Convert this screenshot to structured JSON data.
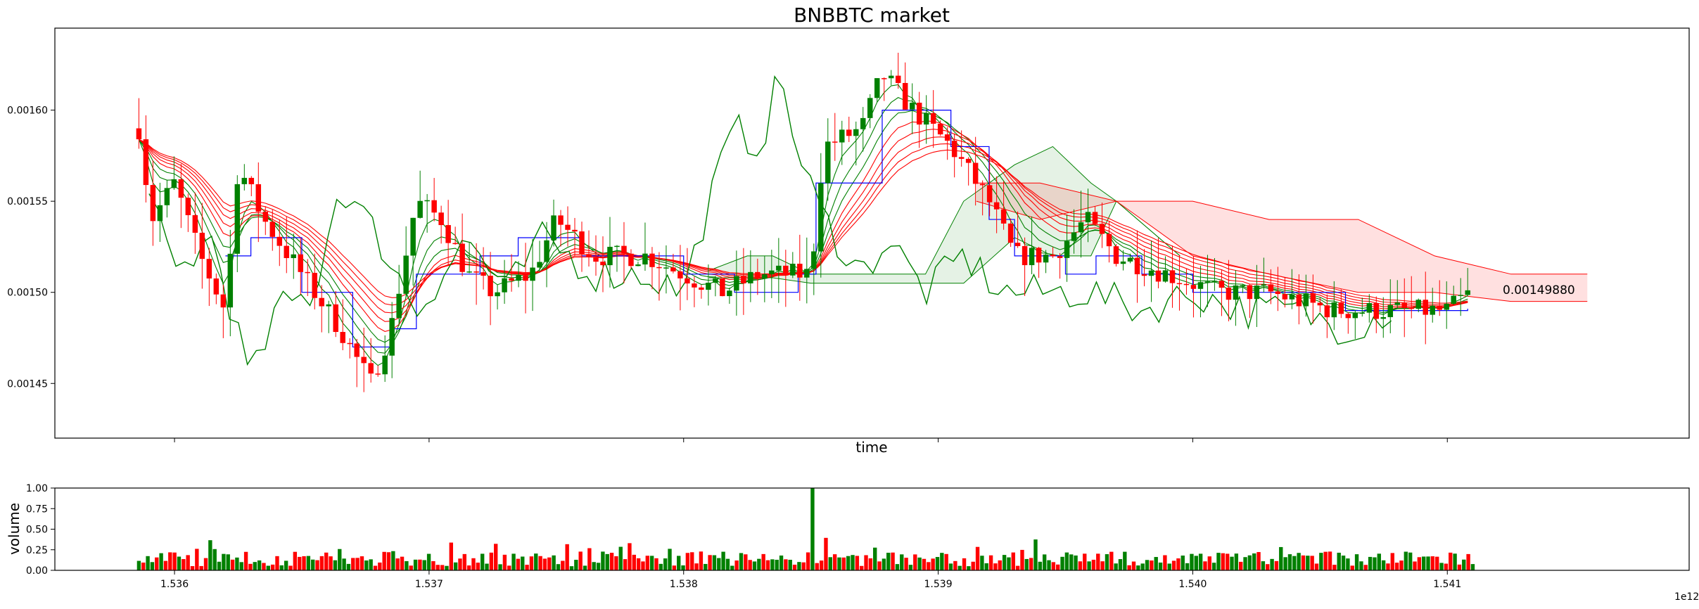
{
  "chart_data": [
    {
      "type": "candlestick",
      "title": "BNBBTC market",
      "xlabel": "time",
      "ylabel": "",
      "xlim": [
        1535530000000,
        1541950000000
      ],
      "ylim": [
        0.00142,
        0.001645
      ],
      "yticks": [
        0.00145,
        0.0015,
        0.00155,
        0.0016
      ],
      "ytick_labels": [
        "0.00145",
        "0.00150",
        "0.00155",
        "0.00160"
      ],
      "last_price_label": "0.00149880",
      "last_price": 0.0014988,
      "colors": {
        "up": "#008000",
        "down": "#ff0000",
        "kijun": "#0000ff",
        "ema": "#ff0000",
        "ema_fast": "#008000",
        "cloud_bull": "#008000",
        "cloud_bear": "#ff0000"
      },
      "price_path": [
        [
          1535860000000,
          0.00159
        ],
        [
          1535910000000,
          0.00154
        ],
        [
          1536000000000,
          0.00156
        ],
        [
          1536100000000,
          0.00152
        ],
        [
          1536200000000,
          0.00149
        ],
        [
          1536250000000,
          0.00157
        ],
        [
          1536350000000,
          0.00154
        ],
        [
          1536500000000,
          0.00151
        ],
        [
          1536650000000,
          0.00148
        ],
        [
          1536770000000,
          0.00145
        ],
        [
          1536850000000,
          0.00148
        ],
        [
          1536950000000,
          0.00155
        ],
        [
          1537050000000,
          0.00154
        ],
        [
          1537150000000,
          0.00151
        ],
        [
          1537250000000,
          0.0015
        ],
        [
          1537400000000,
          0.00151
        ],
        [
          1537500000000,
          0.00154
        ],
        [
          1537650000000,
          0.00152
        ],
        [
          1537850000000,
          0.00152
        ],
        [
          1538000000000,
          0.00151
        ],
        [
          1538150000000,
          0.0015
        ],
        [
          1538300000000,
          0.00151
        ],
        [
          1538500000000,
          0.00151
        ],
        [
          1538550000000,
          0.00158
        ],
        [
          1538700000000,
          0.00159
        ],
        [
          1538780000000,
          0.00162
        ],
        [
          1538900000000,
          0.0016
        ],
        [
          1539050000000,
          0.00158
        ],
        [
          1539200000000,
          0.00155
        ],
        [
          1539300000000,
          0.00152
        ],
        [
          1539450000000,
          0.00152
        ],
        [
          1539580000000,
          0.00154
        ],
        [
          1539700000000,
          0.00152
        ],
        [
          1539900000000,
          0.00151
        ],
        [
          1540100000000,
          0.0015
        ],
        [
          1540300000000,
          0.0015
        ],
        [
          1540550000000,
          0.00149
        ],
        [
          1540800000000,
          0.00149
        ],
        [
          1541000000000,
          0.00149
        ],
        [
          1541080000000,
          0.0014988
        ]
      ],
      "chikou_path": [
        [
          1535900000000,
          0.00155
        ],
        [
          1536000000000,
          0.00151
        ],
        [
          1536150000000,
          0.00153
        ],
        [
          1536300000000,
          0.00145
        ],
        [
          1536400000000,
          0.00149
        ],
        [
          1536550000000,
          0.0015
        ],
        [
          1536650000000,
          0.00156
        ],
        [
          1536800000000,
          0.00153
        ],
        [
          1536950000000,
          0.00149
        ],
        [
          1537150000000,
          0.00153
        ],
        [
          1537300000000,
          0.0015
        ],
        [
          1537450000000,
          0.00153
        ],
        [
          1537650000000,
          0.00151
        ],
        [
          1537850000000,
          0.00151
        ],
        [
          1538000000000,
          0.0015
        ],
        [
          1538100000000,
          0.00155
        ],
        [
          1538200000000,
          0.00159
        ],
        [
          1538300000000,
          0.00158
        ],
        [
          1538380000000,
          0.00162
        ],
        [
          1538460000000,
          0.00157
        ],
        [
          1538550000000,
          0.00154
        ],
        [
          1538700000000,
          0.00151
        ],
        [
          1538800000000,
          0.00153
        ],
        [
          1538950000000,
          0.0015
        ],
        [
          1539100000000,
          0.00152
        ],
        [
          1539250000000,
          0.0015
        ],
        [
          1539450000000,
          0.0015
        ],
        [
          1539600000000,
          0.0015
        ],
        [
          1539800000000,
          0.00149
        ],
        [
          1540000000000,
          0.0015
        ],
        [
          1540200000000,
          0.00149
        ],
        [
          1540400000000,
          0.00149
        ],
        [
          1540600000000,
          0.00148
        ],
        [
          1540780000000,
          0.00149
        ]
      ],
      "kijun_path": [
        [
          1536200000000,
          0.00152
        ],
        [
          1536300000000,
          0.00153
        ],
        [
          1536450000000,
          0.00153
        ],
        [
          1536500000000,
          0.0015
        ],
        [
          1536700000000,
          0.00147
        ],
        [
          1536850000000,
          0.00148
        ],
        [
          1536950000000,
          0.00151
        ],
        [
          1537200000000,
          0.00152
        ],
        [
          1537350000000,
          0.00153
        ],
        [
          1537600000000,
          0.00152
        ],
        [
          1537850000000,
          0.00152
        ],
        [
          1538000000000,
          0.00151
        ],
        [
          1538200000000,
          0.0015
        ],
        [
          1538450000000,
          0.00151
        ],
        [
          1538520000000,
          0.00156
        ],
        [
          1538650000000,
          0.00156
        ],
        [
          1538780000000,
          0.0016
        ],
        [
          1539050000000,
          0.00158
        ],
        [
          1539200000000,
          0.00154
        ],
        [
          1539300000000,
          0.00152
        ],
        [
          1539500000000,
          0.00151
        ],
        [
          1539620000000,
          0.00152
        ],
        [
          1539800000000,
          0.00151
        ],
        [
          1540000000000,
          0.0015
        ],
        [
          1540300000000,
          0.0015
        ],
        [
          1540600000000,
          0.00149
        ],
        [
          1540900000000,
          0.00149
        ],
        [
          1541080000000,
          0.001491
        ]
      ],
      "cloud": [
        {
          "name": "bull",
          "x": [
            1538100000000,
            1538250000000,
            1538350000000,
            1538500000000,
            1538950000000,
            1539100000000,
            1539300000000,
            1539450000000,
            1539600000000,
            1539700000000,
            1539950000000
          ],
          "upper": [
            0.001512,
            0.00152,
            0.00152,
            0.00151,
            0.00151,
            0.00155,
            0.00157,
            0.00158,
            0.00156,
            0.00155,
            0.00152
          ],
          "lower": [
            0.001508,
            0.001508,
            0.001508,
            0.001505,
            0.001505,
            0.001505,
            0.00153,
            0.00152,
            0.00152,
            0.00155,
            0.00152
          ]
        },
        {
          "name": "bear",
          "x": [
            1539150000000,
            1539400000000,
            1539700000000,
            1540000000000,
            1540300000000,
            1540650000000,
            1540950000000,
            1541250000000,
            1541550000000
          ],
          "upper": [
            0.00156,
            0.00156,
            0.00155,
            0.00155,
            0.00154,
            0.00154,
            0.00152,
            0.00151,
            0.00151
          ],
          "lower": [
            0.00155,
            0.00154,
            0.00155,
            0.00152,
            0.00151,
            0.0015,
            0.0015,
            0.001495,
            0.001495
          ]
        }
      ],
      "ema_count": 8
    },
    {
      "type": "bar",
      "ylabel": "volume",
      "xlabel": "",
      "ylim": [
        0,
        1
      ],
      "yticks": [
        0,
        0.25,
        0.5,
        0.75,
        1
      ],
      "ytick_labels": [
        "0.00",
        "0.25",
        "0.50",
        "0.75",
        "1.00"
      ],
      "xlim": [
        1535530000000,
        1541950000000
      ],
      "xticks": [
        1536000000000,
        1537000000000,
        1538000000000,
        1539000000000,
        1540000000000,
        1541000000000
      ],
      "xtick_labels": [
        "1.536",
        "1.537",
        "1.538",
        "1.539",
        "1.540",
        "1.541"
      ],
      "x_offset_label": "1e12",
      "bar_start": 1535860000000,
      "bar_end": 1541100000000,
      "spike_x": 1538500000000,
      "spike_value": 1.0
    }
  ]
}
